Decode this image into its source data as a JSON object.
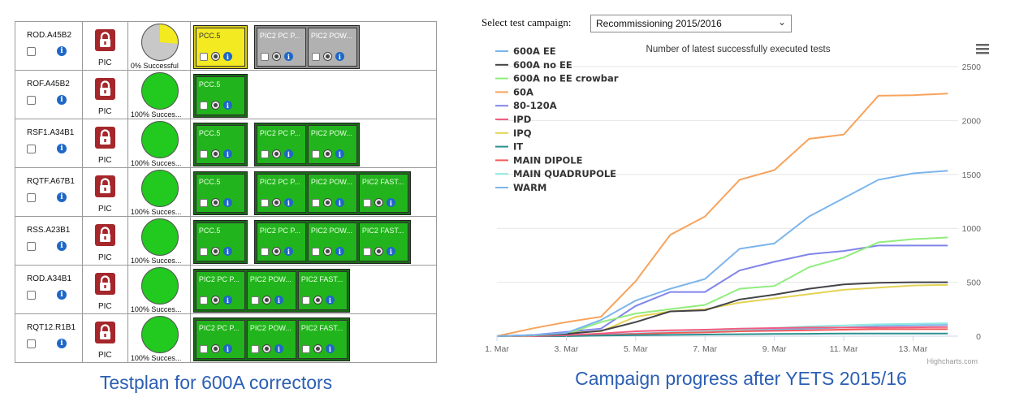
{
  "testplan": {
    "caption": "Testplan for 600A correctors",
    "rows": [
      {
        "circuit": "ROD.A45B2",
        "type": "PIC",
        "pie_label": "0% Successful",
        "success_fraction": 0,
        "groups": [
          {
            "status": "yellow",
            "tests": [
              "PCC.5"
            ]
          },
          {
            "status": "gray",
            "tests": [
              "PIC2 PC P...",
              "PIC2 POW..."
            ]
          }
        ]
      },
      {
        "circuit": "ROF.A45B2",
        "type": "PIC",
        "pie_label": "100% Succes...",
        "success_fraction": 1,
        "groups": [
          {
            "status": "ok",
            "tests": [
              "PCC.5"
            ]
          }
        ]
      },
      {
        "circuit": "RSF1.A34B1",
        "type": "PIC",
        "pie_label": "100% Succes...",
        "success_fraction": 1,
        "groups": [
          {
            "status": "ok",
            "tests": [
              "PCC.5"
            ]
          },
          {
            "status": "ok",
            "tests": [
              "PIC2 PC P...",
              "PIC2 POW..."
            ]
          }
        ]
      },
      {
        "circuit": "RQTF.A67B1",
        "type": "PIC",
        "pie_label": "100% Succes...",
        "success_fraction": 1,
        "groups": [
          {
            "status": "ok",
            "tests": [
              "PCC.5"
            ]
          },
          {
            "status": "ok",
            "tests": [
              "PIC2 PC P...",
              "PIC2 POW...",
              "PIC2 FAST..."
            ]
          }
        ]
      },
      {
        "circuit": "RSS.A23B1",
        "type": "PIC",
        "pie_label": "100% Succes...",
        "success_fraction": 1,
        "groups": [
          {
            "status": "ok",
            "tests": [
              "PCC.5"
            ]
          },
          {
            "status": "ok",
            "tests": [
              "PIC2 PC P...",
              "PIC2 POW...",
              "PIC2 FAST..."
            ]
          }
        ]
      },
      {
        "circuit": "ROD.A34B1",
        "type": "PIC",
        "pie_label": "100% Succes...",
        "success_fraction": 1,
        "groups": [
          {
            "status": "ok",
            "tests": [
              "PIC2 PC P...",
              "PIC2 POW...",
              "PIC2 FAST..."
            ]
          }
        ]
      },
      {
        "circuit": "RQT12.R1B1",
        "type": "PIC",
        "pie_label": "100% Succes...",
        "success_fraction": 1,
        "groups": [
          {
            "status": "ok",
            "tests": [
              "PIC2 PC P...",
              "PIC2 POW...",
              "PIC2 FAST..."
            ]
          }
        ]
      }
    ],
    "colors": {
      "ok": "#22b41c",
      "pie_green": "#22c91f",
      "pie_gray": "#c8c8c8",
      "pie_yellow": "#f3ea22",
      "lock_red": "#a5262b",
      "info_blue": "#1f67c7"
    },
    "icons": [
      "lock-icon",
      "info-icon",
      "gear-icon",
      "checkbox"
    ]
  },
  "campaign": {
    "select_label": "Select test campaign:",
    "selected": "Recommissioning 2015/2016",
    "caption": "Campaign progress after YETS 2015/16",
    "menu_icon": "hamburger-menu-icon",
    "credit": "Highcharts.com"
  },
  "chart_data": {
    "type": "line",
    "title": "Number of latest successfully executed tests",
    "x": [
      1,
      2,
      3,
      4,
      5,
      6,
      7,
      8,
      9,
      10,
      11,
      12,
      13,
      14
    ],
    "xticks": [
      {
        "x": 1,
        "label": "1. Mar"
      },
      {
        "x": 3,
        "label": "3. Mar"
      },
      {
        "x": 5,
        "label": "5. Mar"
      },
      {
        "x": 7,
        "label": "7. Mar"
      },
      {
        "x": 9,
        "label": "9. Mar"
      },
      {
        "x": 11,
        "label": "11. Mar"
      },
      {
        "x": 13,
        "label": "13. Mar"
      }
    ],
    "xlim": [
      1,
      14.3
    ],
    "ylim": [
      0,
      2500
    ],
    "yticks": [
      0,
      500,
      1000,
      1500,
      2000,
      2500
    ],
    "y_axis_side": "right",
    "grid": true,
    "legend_position": "top-left",
    "series": [
      {
        "name": "600A EE",
        "color": "#7cb5ec",
        "values": [
          0,
          10,
          30,
          150,
          330,
          440,
          530,
          810,
          860,
          1110,
          1280,
          1450,
          1510,
          1535
        ]
      },
      {
        "name": "600A no EE",
        "color": "#434348",
        "values": [
          0,
          10,
          20,
          50,
          130,
          230,
          240,
          340,
          385,
          440,
          480,
          495,
          500,
          500
        ]
      },
      {
        "name": "600A no EE crowbar",
        "color": "#90ed7d",
        "values": [
          0,
          5,
          20,
          130,
          210,
          250,
          290,
          440,
          465,
          640,
          730,
          870,
          900,
          915
        ]
      },
      {
        "name": "60A",
        "color": "#f7a35c",
        "values": [
          0,
          70,
          130,
          180,
          510,
          940,
          1110,
          1450,
          1540,
          1830,
          1870,
          2230,
          2235,
          2250
        ]
      },
      {
        "name": "80-120A",
        "color": "#8085e9",
        "values": [
          0,
          10,
          40,
          70,
          280,
          410,
          410,
          610,
          690,
          760,
          790,
          840,
          840,
          840
        ]
      },
      {
        "name": "IPD",
        "color": "#f15c80",
        "values": [
          0,
          0,
          10,
          25,
          45,
          55,
          60,
          70,
          75,
          80,
          80,
          80,
          82,
          85
        ]
      },
      {
        "name": "IPQ",
        "color": "#e4d354",
        "values": [
          0,
          5,
          30,
          45,
          180,
          230,
          250,
          310,
          350,
          390,
          430,
          450,
          470,
          475
        ]
      },
      {
        "name": "IT",
        "color": "#2b908f",
        "values": [
          0,
          0,
          0,
          5,
          10,
          12,
          15,
          18,
          20,
          22,
          25,
          25,
          25,
          25
        ]
      },
      {
        "name": "MAIN DIPOLE",
        "color": "#f45b5b",
        "values": [
          0,
          0,
          5,
          10,
          20,
          30,
          35,
          45,
          50,
          55,
          60,
          65,
          65,
          65
        ]
      },
      {
        "name": "MAIN QUADRUPOLE",
        "color": "#91e8e1",
        "values": [
          0,
          0,
          5,
          10,
          20,
          35,
          45,
          60,
          75,
          90,
          100,
          110,
          115,
          120
        ]
      },
      {
        "name": "WARM",
        "color": "#7cb5ec",
        "values": [
          0,
          0,
          5,
          15,
          25,
          35,
          40,
          50,
          60,
          70,
          80,
          95,
          100,
          105
        ]
      }
    ]
  }
}
